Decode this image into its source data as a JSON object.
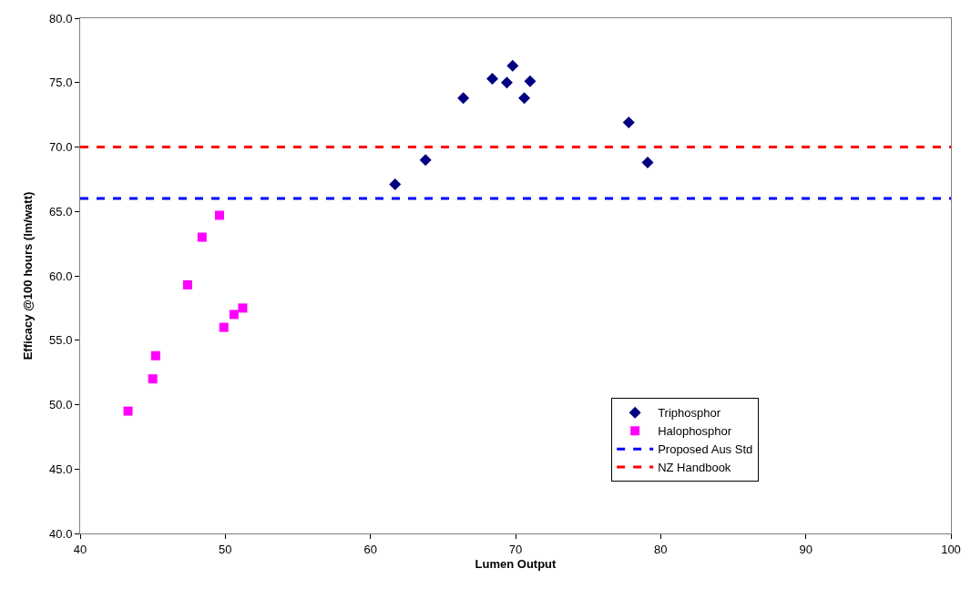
{
  "chart_data": {
    "type": "scatter",
    "xlabel": "Lumen Output",
    "ylabel": "Efficacy @100 hours (lm/watt)",
    "xlim": [
      40,
      100
    ],
    "xticks": [
      40,
      50,
      60,
      70,
      80,
      90,
      100
    ],
    "ylim": [
      40,
      80
    ],
    "yticks": [
      {
        "value": 40,
        "label": "40.0"
      },
      {
        "value": 45,
        "label": "45.0"
      },
      {
        "value": 50,
        "label": "50.0"
      },
      {
        "value": 55,
        "label": "55.0"
      },
      {
        "value": 60,
        "label": "60.0"
      },
      {
        "value": 65,
        "label": "65.0"
      },
      {
        "value": 70,
        "label": "70.0"
      },
      {
        "value": 75,
        "label": "75.0"
      },
      {
        "value": 80,
        "label": "80.0"
      }
    ],
    "legend": "bottom right",
    "series": [
      {
        "name": "Triphosphor",
        "color": "#000080",
        "marker": "diamond",
        "x": [
          61.7,
          63.8,
          66.4,
          68.4,
          69.4,
          69.8,
          70.6,
          71.0,
          77.8,
          79.1
        ],
        "values": [
          67.1,
          69.0,
          73.8,
          75.3,
          75.0,
          76.3,
          73.8,
          75.1,
          71.9,
          68.8
        ]
      },
      {
        "name": "Halophosphor",
        "color": "#ff00ff",
        "marker": "square",
        "x": [
          43.3,
          45.0,
          45.2,
          47.4,
          48.4,
          49.6,
          49.9,
          50.6,
          51.2
        ],
        "values": [
          49.5,
          52.0,
          53.8,
          59.3,
          63.0,
          64.7,
          56.0,
          57.0,
          57.5
        ]
      }
    ],
    "ref_lines": [
      {
        "axis": "y",
        "value": 66.0,
        "label": "Proposed Aus Std",
        "color": "#0000ff",
        "line_style": "dashed"
      },
      {
        "axis": "y",
        "value": 70.0,
        "label": "NZ Handbook",
        "color": "#ff0000",
        "line_style": "dashed"
      }
    ]
  }
}
